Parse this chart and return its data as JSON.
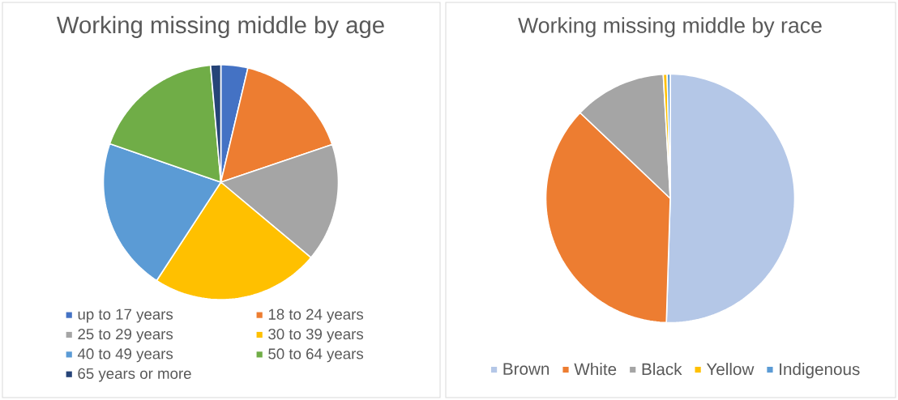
{
  "chart_data": [
    {
      "type": "pie",
      "title": "Working missing middle by age",
      "categories": [
        "up to 17 years",
        "18 to 24 years",
        "25 to 29 years",
        "30 to 39 years",
        "40 to 49 years",
        "50 to 64 years",
        "65 years or more"
      ],
      "values": [
        3.7,
        16.1,
        16.3,
        23.1,
        21.1,
        18.3,
        1.4
      ],
      "colors": [
        "#4472c4",
        "#ed7d31",
        "#a5a5a5",
        "#ffc000",
        "#5b9bd5",
        "#70ad47",
        "#264478"
      ],
      "legend": "bottom"
    },
    {
      "type": "pie",
      "title": "Working missing middle by race",
      "categories": [
        "Brown",
        "White",
        "Black",
        "Yellow",
        "Indigenous"
      ],
      "values": [
        50.5,
        36.6,
        12.0,
        0.5,
        0.4
      ],
      "colors": [
        "#b4c7e7",
        "#ed7d31",
        "#a5a5a5",
        "#ffc000",
        "#5b9bd5"
      ],
      "legend": "bottom"
    }
  ]
}
